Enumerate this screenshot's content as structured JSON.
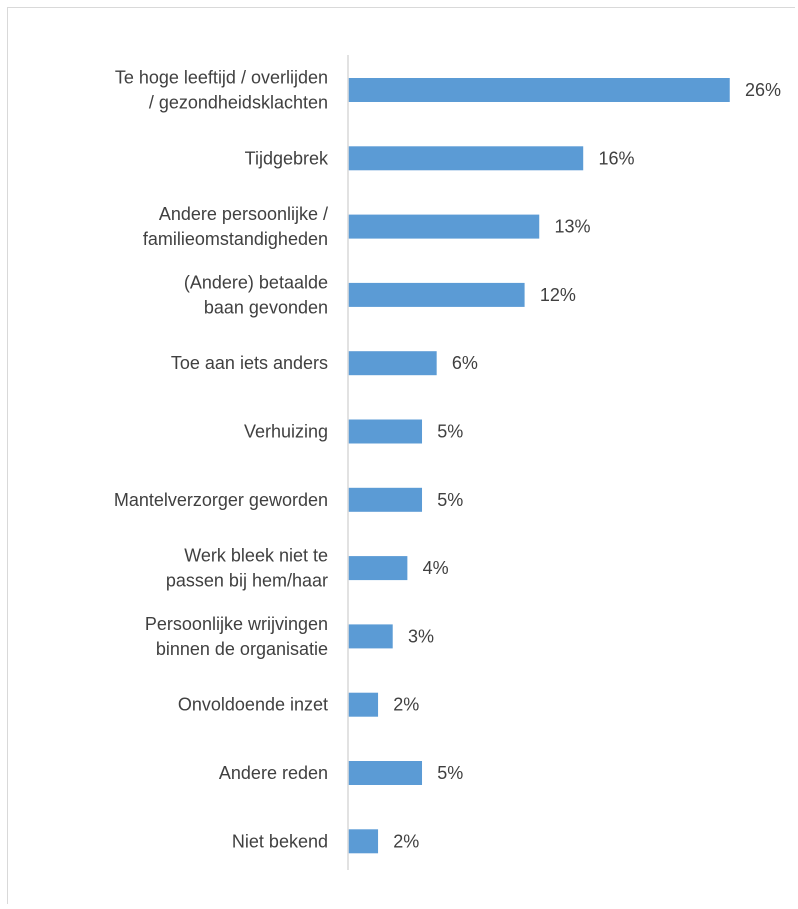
{
  "chart_data": {
    "type": "bar",
    "orientation": "horizontal",
    "categories": [
      "Te hoge leeftijd / overlijden / gezondheidsklachten",
      "Tijdgebrek",
      "Andere persoonlijke / familieomstandigheden",
      "(Andere) betaalde baan gevonden",
      "Toe aan iets anders",
      "Verhuizing",
      "Mantelverzorger geworden",
      "Werk bleek niet te passen bij hem/haar",
      "Persoonlijke wrijvingen binnen de organisatie",
      "Onvoldoende inzet",
      "Andere reden",
      "Niet bekend"
    ],
    "category_lines": [
      [
        "Te hoge leeftijd / overlijden",
        "/ gezondheidsklachten"
      ],
      [
        "Tijdgebrek"
      ],
      [
        "Andere persoonlijke /",
        "familieomstandigheden"
      ],
      [
        "(Andere) betaalde",
        "baan gevonden"
      ],
      [
        "Toe aan iets anders"
      ],
      [
        "Verhuizing"
      ],
      [
        "Mantelverzorger geworden"
      ],
      [
        "Werk bleek niet te",
        "passen bij hem/haar"
      ],
      [
        "Persoonlijke wrijvingen",
        "binnen de organisatie"
      ],
      [
        "Onvoldoende inzet"
      ],
      [
        "Andere reden"
      ],
      [
        "Niet bekend"
      ]
    ],
    "values": [
      26,
      16,
      13,
      12,
      6,
      5,
      5,
      4,
      3,
      2,
      5,
      2
    ],
    "value_labels": [
      "26%",
      "16%",
      "13%",
      "12%",
      "6%",
      "5%",
      "5%",
      "4%",
      "3%",
      "2%",
      "5%",
      "2%"
    ],
    "xlim": [
      0,
      27
    ],
    "grid": false,
    "legend": "none",
    "bar_color": "#5b9bd5",
    "axis_color": "#d9d9d9",
    "text_color": "#404040"
  }
}
